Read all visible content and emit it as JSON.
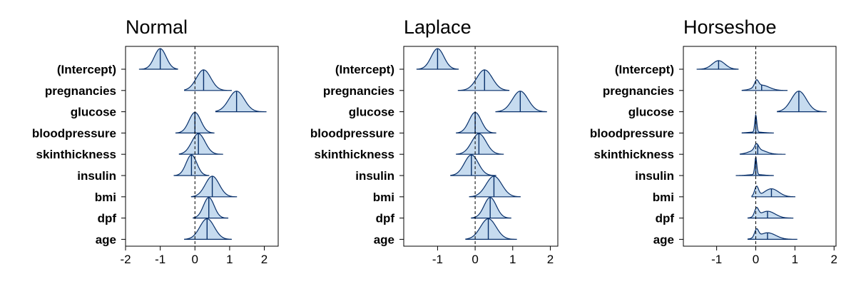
{
  "chart_data": [
    {
      "type": "ridgeline",
      "title": "Normal",
      "categories": [
        "(Intercept)",
        "pregnancies",
        "glucose",
        "bloodpressure",
        "skinthickness",
        "insulin",
        "bmi",
        "dpf",
        "age"
      ],
      "medians": [
        -1.0,
        0.25,
        1.2,
        0.0,
        0.1,
        -0.1,
        0.5,
        0.4,
        0.35
      ],
      "intervals": [
        [
          -1.6,
          -0.5
        ],
        [
          -0.3,
          1.05
        ],
        [
          0.6,
          2.05
        ],
        [
          -0.55,
          0.55
        ],
        [
          -0.45,
          0.8
        ],
        [
          -0.6,
          0.4
        ],
        [
          -0.1,
          1.2
        ],
        [
          -0.05,
          0.95
        ],
        [
          -0.3,
          1.05
        ]
      ],
      "shape": [
        "normal",
        "normal",
        "normal",
        "normal",
        "normal",
        "normal",
        "normal",
        "normal",
        "normal"
      ],
      "reference_line": 0,
      "xlim": [
        -2,
        2.4
      ],
      "xticks": [
        -2,
        -1,
        0,
        1,
        2
      ],
      "xtick_labels": [
        "-2",
        "-1",
        "0",
        "1",
        "2"
      ]
    },
    {
      "type": "ridgeline",
      "title": "Laplace",
      "categories": [
        "(Intercept)",
        "pregnancies",
        "glucose",
        "bloodpressure",
        "skinthickness",
        "insulin",
        "bmi",
        "dpf",
        "age"
      ],
      "medians": [
        -1.0,
        0.25,
        1.2,
        0.0,
        0.1,
        -0.1,
        0.5,
        0.4,
        0.35
      ],
      "intervals": [
        [
          -1.55,
          -0.45
        ],
        [
          -0.45,
          0.9
        ],
        [
          0.55,
          1.9
        ],
        [
          -0.5,
          0.55
        ],
        [
          -0.5,
          0.75
        ],
        [
          -0.65,
          0.55
        ],
        [
          -0.15,
          1.2
        ],
        [
          -0.1,
          0.95
        ],
        [
          -0.25,
          1.1
        ]
      ],
      "shape": [
        "normal",
        "normal",
        "normal",
        "normal",
        "normal",
        "normal",
        "normal",
        "normal",
        "normal"
      ],
      "reference_line": 0,
      "xlim": [
        -1.9,
        2.2
      ],
      "xticks": [
        -1,
        0,
        1,
        2
      ],
      "xtick_labels": [
        "-1",
        "0",
        "1",
        "2"
      ]
    },
    {
      "type": "ridgeline",
      "title": "Horseshoe",
      "categories": [
        "(Intercept)",
        "pregnancies",
        "glucose",
        "bloodpressure",
        "skinthickness",
        "insulin",
        "bmi",
        "dpf",
        "age"
      ],
      "medians": [
        -0.95,
        0.15,
        1.1,
        0.0,
        0.05,
        0.0,
        0.4,
        0.3,
        0.3
      ],
      "intervals": [
        [
          -1.5,
          -0.45
        ],
        [
          -0.35,
          0.8
        ],
        [
          0.55,
          1.8
        ],
        [
          -0.35,
          0.45
        ],
        [
          -0.4,
          0.75
        ],
        [
          -0.5,
          0.45
        ],
        [
          -0.1,
          1.0
        ],
        [
          -0.2,
          0.95
        ],
        [
          -0.2,
          1.05
        ]
      ],
      "shape": [
        "normal",
        "skew",
        "normal",
        "spike",
        "skew",
        "spike",
        "skew",
        "skew",
        "skew"
      ],
      "reference_line": 0,
      "xlim": [
        -1.85,
        2.05
      ],
      "xticks": [
        -1,
        0,
        1,
        2
      ],
      "xtick_labels": [
        "-1",
        "0",
        "1",
        "2"
      ]
    }
  ],
  "colors": {
    "fill": "#c6dbef",
    "outline": "#08306b",
    "median_line": "#08306b",
    "reference_line": "#000000",
    "axis": "#000000"
  }
}
